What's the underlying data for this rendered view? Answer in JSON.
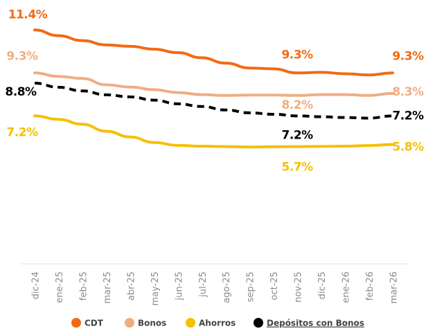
{
  "chart_data": {
    "type": "line",
    "categories": [
      "dic-24",
      "ene-25",
      "feb-25",
      "mar-25",
      "abr-25",
      "may-25",
      "jun-25",
      "jul-25",
      "ago-25",
      "sep-25",
      "oct-25",
      "nov-25",
      "dic-25",
      "ene-26",
      "feb-26",
      "mar-26"
    ],
    "ylim": [
      0,
      13
    ],
    "series": [
      {
        "name": "CDT",
        "color": "#f26a12",
        "values": [
          11.4,
          11.12,
          10.88,
          10.67,
          10.6,
          10.46,
          10.29,
          10.04,
          9.78,
          9.54,
          9.5,
          9.3,
          9.33,
          9.26,
          9.2,
          9.3
        ],
        "value_labels": [
          "11.4%",
          null,
          null,
          null,
          null,
          null,
          null,
          null,
          null,
          null,
          null,
          "9.3%",
          null,
          null,
          null,
          "9.3%"
        ]
      },
      {
        "name": "Bonos",
        "color": "#f0ad82",
        "values": [
          9.3,
          9.13,
          9.03,
          8.72,
          8.61,
          8.48,
          8.34,
          8.24,
          8.2,
          8.22,
          8.22,
          8.2,
          8.24,
          8.24,
          8.2,
          8.3
        ],
        "value_labels": [
          "9.3%",
          null,
          null,
          null,
          null,
          null,
          null,
          null,
          null,
          null,
          null,
          "8.2%",
          null,
          null,
          null,
          "8.3%"
        ]
      },
      {
        "name": "Ahorros",
        "color": "#f5c000",
        "values": [
          7.2,
          7.03,
          6.79,
          6.45,
          6.17,
          5.9,
          5.76,
          5.72,
          5.7,
          5.68,
          5.69,
          5.7,
          5.71,
          5.72,
          5.75,
          5.8
        ],
        "value_labels": [
          "7.2%",
          null,
          null,
          null,
          null,
          null,
          null,
          null,
          null,
          null,
          null,
          "5.7%",
          null,
          null,
          null,
          "5.8%"
        ]
      },
      {
        "name": "Depósitos con Bonos",
        "color": "#000000",
        "dashed": true,
        "values": [
          8.8,
          8.6,
          8.42,
          8.23,
          8.13,
          7.97,
          7.79,
          7.66,
          7.49,
          7.35,
          7.28,
          7.2,
          7.16,
          7.12,
          7.09,
          7.2
        ],
        "value_labels": [
          "8.8%",
          null,
          null,
          null,
          null,
          null,
          null,
          null,
          null,
          null,
          null,
          "7.2%",
          null,
          null,
          null,
          "7.2%"
        ]
      }
    ]
  }
}
